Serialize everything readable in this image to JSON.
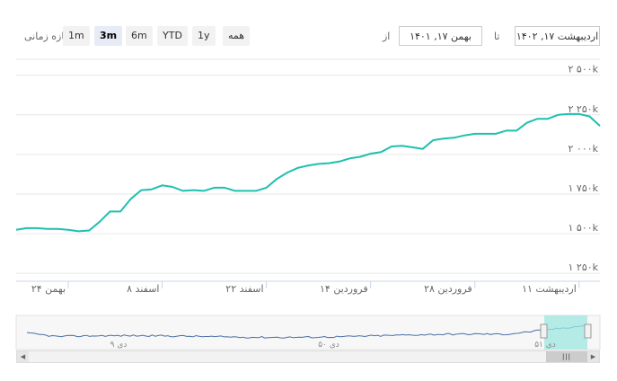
{
  "range_selector": {
    "zoom_label": "بازه زمانی",
    "buttons": [
      "1m",
      "3m",
      "6m",
      "YTD",
      "1y",
      "همه"
    ],
    "selected": "3m",
    "from_label": "از",
    "from_value": "بهمن ۱۷, ۱۴۰۱",
    "to_label": "تا",
    "to_value": "اردیبهشت ۱۷, ۱۴۰۲"
  },
  "chart_data": {
    "type": "line",
    "title": "",
    "xlabel": "",
    "ylabel": "",
    "color": "#1dc0b0",
    "ylim": [
      1200,
      2600
    ],
    "yticks": [
      1250,
      1500,
      1750,
      2000,
      2250,
      2500
    ],
    "ytick_labels": [
      "۱ ۲۵۰k",
      "۱ ۵۰۰k",
      "۱ ۷۵۰k",
      "۲ ۰۰۰k",
      "۲ ۲۵۰k",
      "۲ ۵۰۰k"
    ],
    "xticks": [
      {
        "label": "بهمن ۲۴",
        "index": 5
      },
      {
        "label": "اسفند ۸",
        "index": 14
      },
      {
        "label": "اسفند ۲۲",
        "index": 24
      },
      {
        "label": "فروردین ۱۴",
        "index": 34
      },
      {
        "label": "فروردین ۲۸",
        "index": 44
      },
      {
        "label": "اردیبهشت ۱۱",
        "index": 54
      }
    ],
    "grid": true,
    "legend": "none",
    "values": [
      1525,
      1535,
      1535,
      1530,
      1530,
      1525,
      1515,
      1520,
      1575,
      1640,
      1640,
      1720,
      1775,
      1780,
      1805,
      1795,
      1770,
      1775,
      1770,
      1790,
      1790,
      1770,
      1770,
      1770,
      1790,
      1845,
      1885,
      1915,
      1930,
      1940,
      1945,
      1955,
      1975,
      1985,
      2005,
      2015,
      2050,
      2055,
      2045,
      2035,
      2090,
      2100,
      2105,
      2120,
      2130,
      2130,
      2130,
      2150,
      2150,
      2200,
      2225,
      2225,
      2250,
      2255,
      2255,
      2240,
      2180
    ]
  },
  "navigator": {
    "labels": [
      "دی ۹",
      "دی ۵۰",
      "دی ۵۱"
    ]
  },
  "scrollbar": {
    "left_arrow": "◀",
    "right_arrow": "▶",
    "thumb": "|||"
  }
}
